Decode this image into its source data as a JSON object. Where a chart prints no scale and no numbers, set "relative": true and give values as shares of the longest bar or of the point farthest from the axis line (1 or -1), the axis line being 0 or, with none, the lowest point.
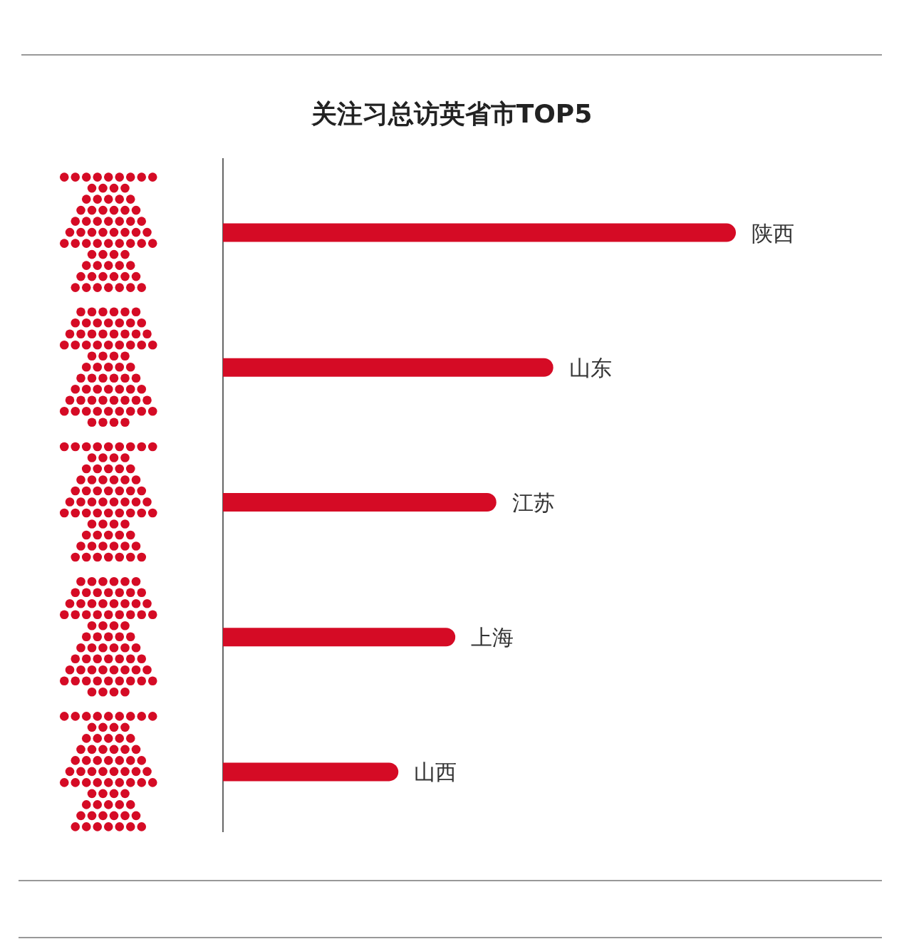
{
  "chart_data": {
    "type": "bar",
    "orientation": "horizontal",
    "relative": true,
    "title": "关注习总访英省市TOP5",
    "categories": [
      "陕西",
      "山东",
      "江苏",
      "上海",
      "山西"
    ],
    "values": [
      1,
      0.644,
      0.533,
      0.453,
      0.342
    ],
    "color": "#d50b25"
  }
}
